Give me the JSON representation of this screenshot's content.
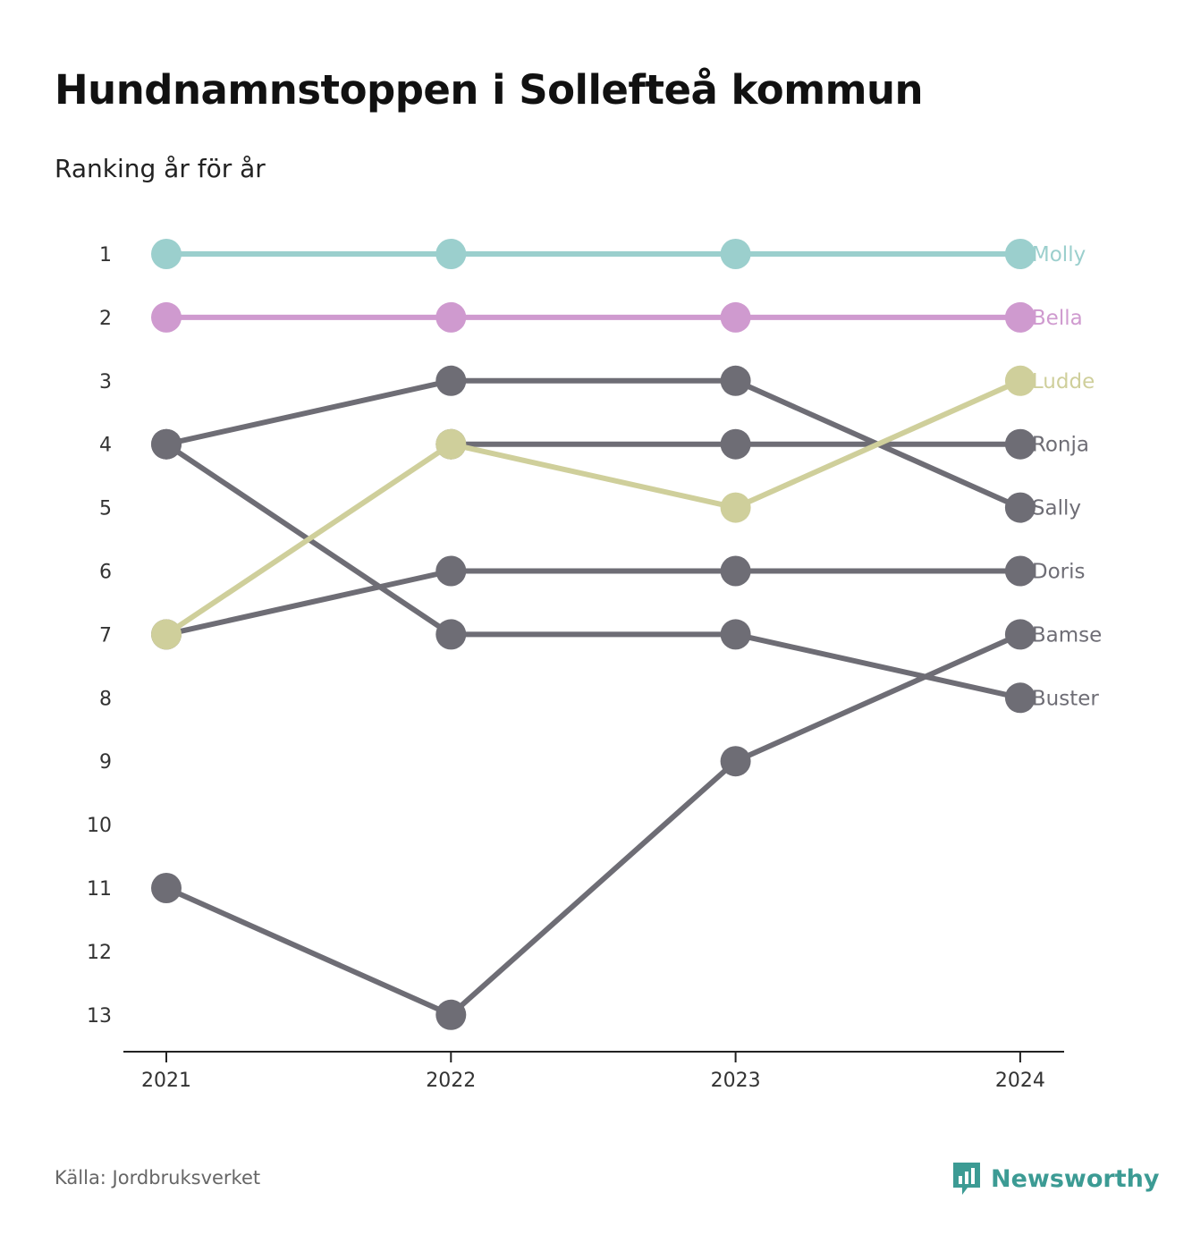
{
  "title": "Hundnamnstoppen i Sollefteå kommun",
  "subtitle": "Ranking år för år",
  "source": "Källa: Jordbruksverket",
  "logo_text": "Newsworthy",
  "colors": {
    "Molly": "#9bcfcd",
    "Bella": "#cf9acf",
    "Ludde": "#cfcf9b",
    "default": "#6e6d75",
    "brand": "#3c9b94"
  },
  "chart_data": {
    "type": "line",
    "title": "Hundnamnstoppen i Sollefteå kommun",
    "subtitle": "Ranking år för år",
    "x": [
      "2021",
      "2022",
      "2023",
      "2024"
    ],
    "y_ticks": [
      "1",
      "2",
      "3",
      "4",
      "5",
      "6",
      "7",
      "8",
      "9",
      "10",
      "11",
      "12",
      "13"
    ],
    "ylim": [
      1,
      13
    ],
    "y_reversed": true,
    "xlabel": "",
    "ylabel": "",
    "series": [
      {
        "name": "Molly",
        "values": [
          1,
          1,
          1,
          1
        ]
      },
      {
        "name": "Bella",
        "values": [
          2,
          2,
          2,
          2
        ]
      },
      {
        "name": "Ludde",
        "values": [
          7,
          4,
          5,
          3
        ]
      },
      {
        "name": "Doris",
        "values": [
          7,
          6,
          6,
          6
        ]
      },
      {
        "name": "Sally",
        "values": [
          4,
          3,
          3,
          5
        ]
      },
      {
        "name": "Bamse",
        "values": [
          11,
          13,
          9,
          7
        ]
      },
      {
        "name": "Buster",
        "values": [
          4,
          7,
          7,
          8
        ]
      },
      {
        "name": "Ronja",
        "values": [
          null,
          4,
          4,
          4
        ]
      }
    ]
  }
}
